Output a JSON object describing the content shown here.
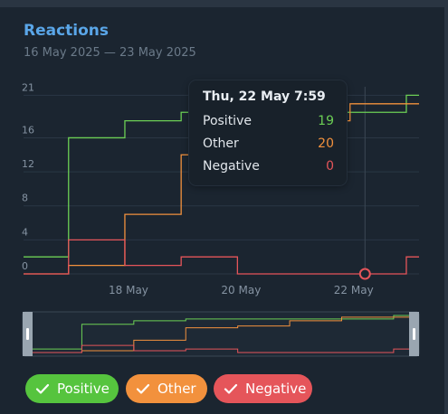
{
  "header": {
    "title": "Reactions",
    "date_range": "16 May 2025 — 23 May 2025"
  },
  "tooltip": {
    "title": "Thu, 22 May 7:59",
    "rows": [
      {
        "label": "Positive",
        "value": "19",
        "color": "#6ccf55"
      },
      {
        "label": "Other",
        "value": "20",
        "color": "#f2913d"
      },
      {
        "label": "Negative",
        "value": "0",
        "color": "#e5555a"
      }
    ]
  },
  "legend": [
    {
      "label": "Positive",
      "color": "#56c43e",
      "checked": true
    },
    {
      "label": "Other",
      "color": "#f2913d",
      "checked": true
    },
    {
      "label": "Negative",
      "color": "#e5555a",
      "checked": true
    }
  ],
  "chart_data": {
    "type": "line",
    "step": true,
    "x_unit": "day",
    "x_ticks": [
      "18 May",
      "20 May",
      "22 May"
    ],
    "y_ticks": [
      "21",
      "16",
      "12",
      "8",
      "4",
      "0"
    ],
    "x": [
      "16 May",
      "17 May",
      "18 May",
      "19 May",
      "20 May",
      "21 May",
      "22 May",
      "23 May"
    ],
    "series": [
      {
        "name": "Positive",
        "color": "#6ccf55",
        "values": [
          2,
          16,
          18,
          19,
          19,
          19,
          19,
          21
        ]
      },
      {
        "name": "Other",
        "color": "#f2913d",
        "values": [
          0,
          1,
          7,
          14,
          15,
          18,
          20,
          20
        ]
      },
      {
        "name": "Negative",
        "color": "#e5555a",
        "values": [
          0,
          4,
          1,
          2,
          0,
          0,
          0,
          2
        ]
      }
    ],
    "highlight": {
      "x": "22 May 7:59",
      "series": "Negative",
      "value": 0
    },
    "grid": true
  }
}
